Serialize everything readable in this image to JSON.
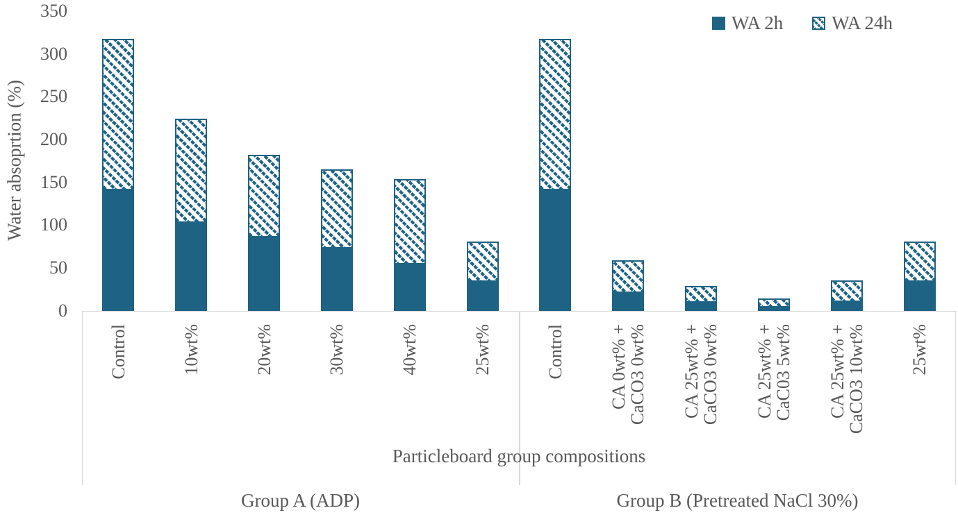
{
  "chart_data": {
    "type": "bar",
    "stacked": true,
    "title": "",
    "ylabel": "Water absoprtion (%)",
    "xlabel": "Particleboard group compositions",
    "ylim": [
      0,
      350
    ],
    "yticks": [
      0,
      50,
      100,
      150,
      200,
      250,
      300,
      350
    ],
    "grid": "off",
    "legend_position": "top-right",
    "legend": [
      "WA 2h",
      "WA 24h"
    ],
    "stacking_note": "WA 24h drawn as hatched segment stacked above solid WA 2h segment",
    "groups": [
      {
        "label": "Group A (ADP)",
        "categories": [
          "Control",
          "10wt%",
          "20wt%",
          "30wt%",
          "40wt%",
          "25wt%"
        ],
        "series": [
          {
            "name": "WA 2h",
            "values": [
              141,
              103,
              86,
              73,
              54,
              34
            ]
          },
          {
            "name": "WA 24h",
            "values": [
              177,
              121,
              96,
              92,
              100,
              47
            ]
          }
        ],
        "bar_totals": [
          318,
          224,
          182,
          165,
          154,
          81
        ]
      },
      {
        "label": "Group B (Pretreated NaCl 30%)",
        "categories": [
          "Control",
          "CA 0wt% +\nCaCO3 0wt%",
          "CA 25wt% +\nCaCO3 0wt%",
          "CA 25wt% +\nCaC03 5wt%",
          "CA 25wt% +\nCaCO3 10wt%",
          "25wt%"
        ],
        "series": [
          {
            "name": "WA 2h",
            "values": [
              141,
              21,
              9,
              4,
              10,
              34
            ]
          },
          {
            "name": "WA 24h",
            "values": [
              177,
              38,
              20,
              10,
              25,
              47
            ]
          }
        ],
        "bar_totals": [
          318,
          59,
          29,
          14,
          35,
          81
        ]
      }
    ],
    "colors": {
      "wa2h_fill": "#1f6384",
      "wa24h_hatch": "#1f6384",
      "axis_line": "#d9d9d9",
      "text": "#595959",
      "background": "#ffffff"
    }
  }
}
